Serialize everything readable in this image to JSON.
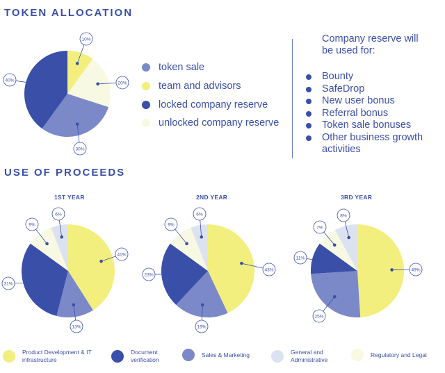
{
  "colors": {
    "yellow": "#f2ef7e",
    "pale": "#f7f9e2",
    "dark": "#3a4fa8",
    "medium": "#7b89c8",
    "light": "#dde2f1",
    "text": "#3a4fa8"
  },
  "token_allocation": {
    "title": "TOKEN ALLOCATION",
    "legend": [
      {
        "label": "token sale",
        "color": "#7b89c8"
      },
      {
        "label": "team and advisors",
        "color": "#f2ef7e"
      },
      {
        "label": "locked company reserve",
        "color": "#3a4fa8"
      },
      {
        "label": "unlocked company reserve",
        "color": "#f7f9e2"
      }
    ]
  },
  "reserve": {
    "title_line1": "Company reserve will",
    "title_line2": "be used for:",
    "items": [
      "Bounty",
      "SafeDrop",
      "New user bonus",
      "Referral bonus",
      "Token sale bonuses",
      "Other business growth activities"
    ]
  },
  "proceeds": {
    "title": "USE OF PROCEEDS",
    "legend": [
      {
        "label": "Product Development & IT infrastructure",
        "color": "#f2ef7e"
      },
      {
        "label": "Document verification",
        "color": "#3a4fa8"
      },
      {
        "label": "Sales & Marketing",
        "color": "#7b89c8"
      },
      {
        "label": "General and Administrative",
        "color": "#dde2f1"
      },
      {
        "label": "Regulatory and Legal",
        "color": "#f7f9e2"
      }
    ]
  },
  "chart_data": [
    {
      "type": "pie",
      "title": "Token Allocation",
      "slices": [
        {
          "label": "team and advisors",
          "value": 10,
          "display": "10%",
          "color": "#f2ef7e"
        },
        {
          "label": "unlocked company reserve",
          "value": 20,
          "display": "20%",
          "color": "#f7f9e2"
        },
        {
          "label": "token sale",
          "value": 30,
          "display": "30%",
          "color": "#7b89c8"
        },
        {
          "label": "locked company reserve",
          "value": 40,
          "display": "40%",
          "color": "#3a4fa8"
        }
      ]
    },
    {
      "type": "pie",
      "title": "1ST YEAR",
      "slices": [
        {
          "label": "Product Development & IT infrastructure",
          "value": 41,
          "display": "41%",
          "color": "#f2ef7e"
        },
        {
          "label": "Sales & Marketing",
          "value": 13,
          "display": "13%",
          "color": "#7b89c8"
        },
        {
          "label": "Document verification",
          "value": 31,
          "display": "31%",
          "color": "#3a4fa8"
        },
        {
          "label": "Regulatory and Legal",
          "value": 9,
          "display": "9%",
          "color": "#f7f9e2"
        },
        {
          "label": "General and Administrative",
          "value": 6,
          "display": "6%",
          "color": "#dde2f1"
        }
      ]
    },
    {
      "type": "pie",
      "title": "2ND YEAR",
      "slices": [
        {
          "label": "Product Development & IT infrastructure",
          "value": 43,
          "display": "43%",
          "color": "#f2ef7e"
        },
        {
          "label": "Sales & Marketing",
          "value": 19,
          "display": "19%",
          "color": "#7b89c8"
        },
        {
          "label": "Document verification",
          "value": 23,
          "display": "23%",
          "color": "#3a4fa8"
        },
        {
          "label": "Regulatory and Legal",
          "value": 9,
          "display": "9%",
          "color": "#f7f9e2"
        },
        {
          "label": "General and Administrative",
          "value": 6,
          "display": "6%",
          "color": "#dde2f1"
        }
      ]
    },
    {
      "type": "pie",
      "title": "3RD YEAR",
      "slices": [
        {
          "label": "Product Development & IT infrastructure",
          "value": 49,
          "display": "49%",
          "color": "#f2ef7e"
        },
        {
          "label": "Sales & Marketing",
          "value": 25,
          "display": "25%",
          "color": "#7b89c8"
        },
        {
          "label": "Document verification",
          "value": 11,
          "display": "11%",
          "color": "#3a4fa8"
        },
        {
          "label": "Regulatory and Legal",
          "value": 7,
          "display": "7%",
          "color": "#f7f9e2"
        },
        {
          "label": "General and Administrative",
          "value": 8,
          "display": "8%",
          "color": "#dde2f1"
        }
      ]
    }
  ]
}
